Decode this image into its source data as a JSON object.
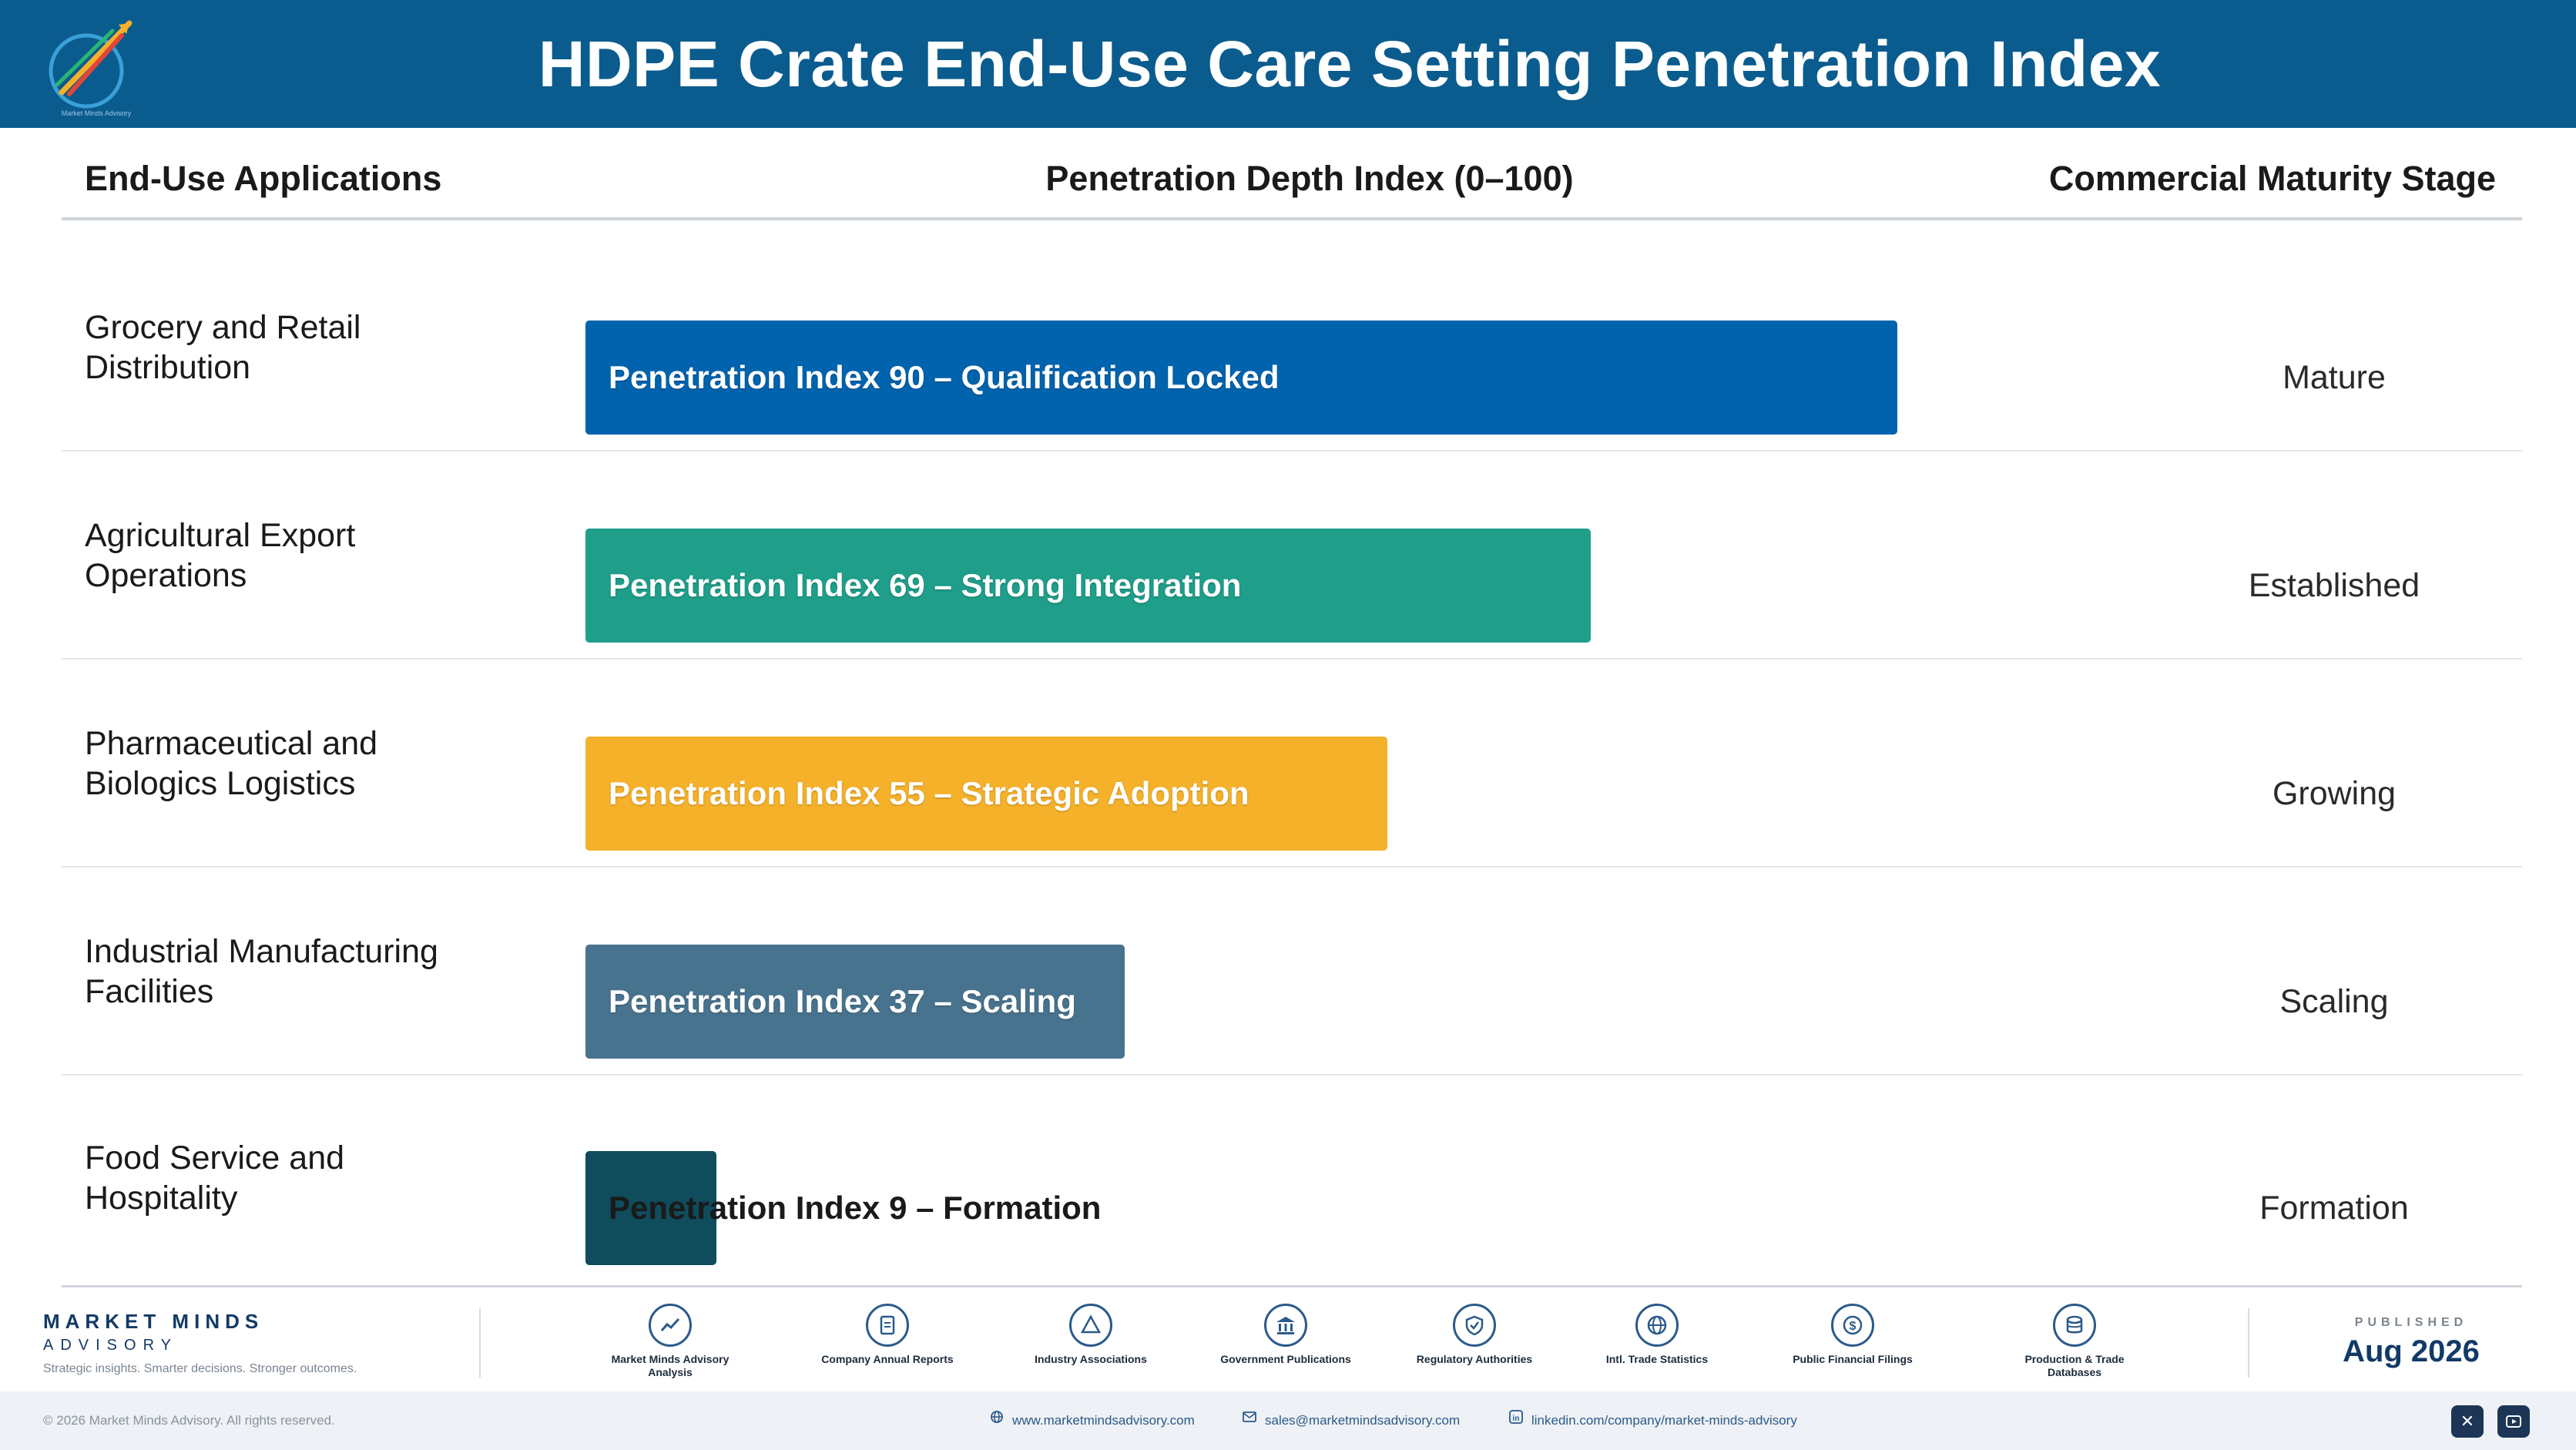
{
  "header": {
    "title": "HDPE Crate End-Use Care Setting Penetration Index"
  },
  "columns": {
    "applications": "End-Use Applications",
    "index": "Penetration Depth Index (0–100)",
    "stage": "Commercial Maturity Stage"
  },
  "colors": {
    "header_bg": "#0b5c8e",
    "bar_1": "#0063ad",
    "bar_2": "#1f9e8a",
    "bar_3": "#f5b12a",
    "bar_4": "#48738e",
    "bar_5": "#0f4c5c"
  },
  "chart_data": {
    "type": "bar",
    "orientation": "horizontal",
    "title": "HDPE Crate End-Use Care Setting Penetration Index",
    "xlabel": "Penetration Depth Index (0–100)",
    "ylabel": "End-Use Applications",
    "xlim": [
      0,
      100
    ],
    "categories": [
      "Grocery and Retail Distribution",
      "Agricultural Export Operations",
      "Pharmaceutical and Biologics Logistics",
      "Industrial Manufacturing Facilities",
      "Food Service and Hospitality"
    ],
    "values": [
      90,
      69,
      55,
      37,
      9
    ],
    "bar_labels": [
      "Penetration Index 90 – Qualification Locked",
      "Penetration Index 69 – Strong Integration",
      "Penetration Index 55 – Strategic Adoption",
      "Penetration Index 37 – Scaling",
      "Penetration Index 9 – Formation"
    ],
    "stages": [
      "Mature",
      "Established",
      "Growing",
      "Scaling",
      "Formation"
    ],
    "grid": false,
    "legend": "none"
  },
  "app_labels": [
    [
      "Grocery and Retail",
      "Distribution"
    ],
    [
      "Agricultural Export",
      "Operations"
    ],
    [
      "Pharmaceutical and",
      "Biologics Logistics"
    ],
    [
      "Industrial Manufacturing",
      "Facilities"
    ],
    [
      "Food Service and",
      "Hospitality"
    ]
  ],
  "footer": {
    "brand_name": "MARKET MINDS",
    "brand_sub": "ADVISORY",
    "brand_tagline": "Strategic insights. Smarter decisions. Stronger outcomes.",
    "sources": [
      {
        "icon": "trend-chart-icon",
        "label": "Market Minds Advisory Analysis"
      },
      {
        "icon": "document-icon",
        "label": "Company Annual Reports"
      },
      {
        "icon": "network-icon",
        "label": "Industry Associations"
      },
      {
        "icon": "government-building-icon",
        "label": "Government Publications"
      },
      {
        "icon": "shield-check-icon",
        "label": "Regulatory Authorities"
      },
      {
        "icon": "globe-icon",
        "label": "Intl. Trade Statistics"
      },
      {
        "icon": "dollar-coin-icon",
        "label": "Public Financial Filings"
      },
      {
        "icon": "database-icon",
        "label": "Production & Trade Databases"
      }
    ],
    "published_label": "PUBLISHED",
    "published_date": "Aug 2026",
    "copyright": "© 2026 Market Minds Advisory. All rights reserved.",
    "website": "www.marketmindsadvisory.com",
    "email": "sales@marketmindsadvisory.com",
    "linkedin": "linkedin.com/company/market-minds-advisory"
  }
}
